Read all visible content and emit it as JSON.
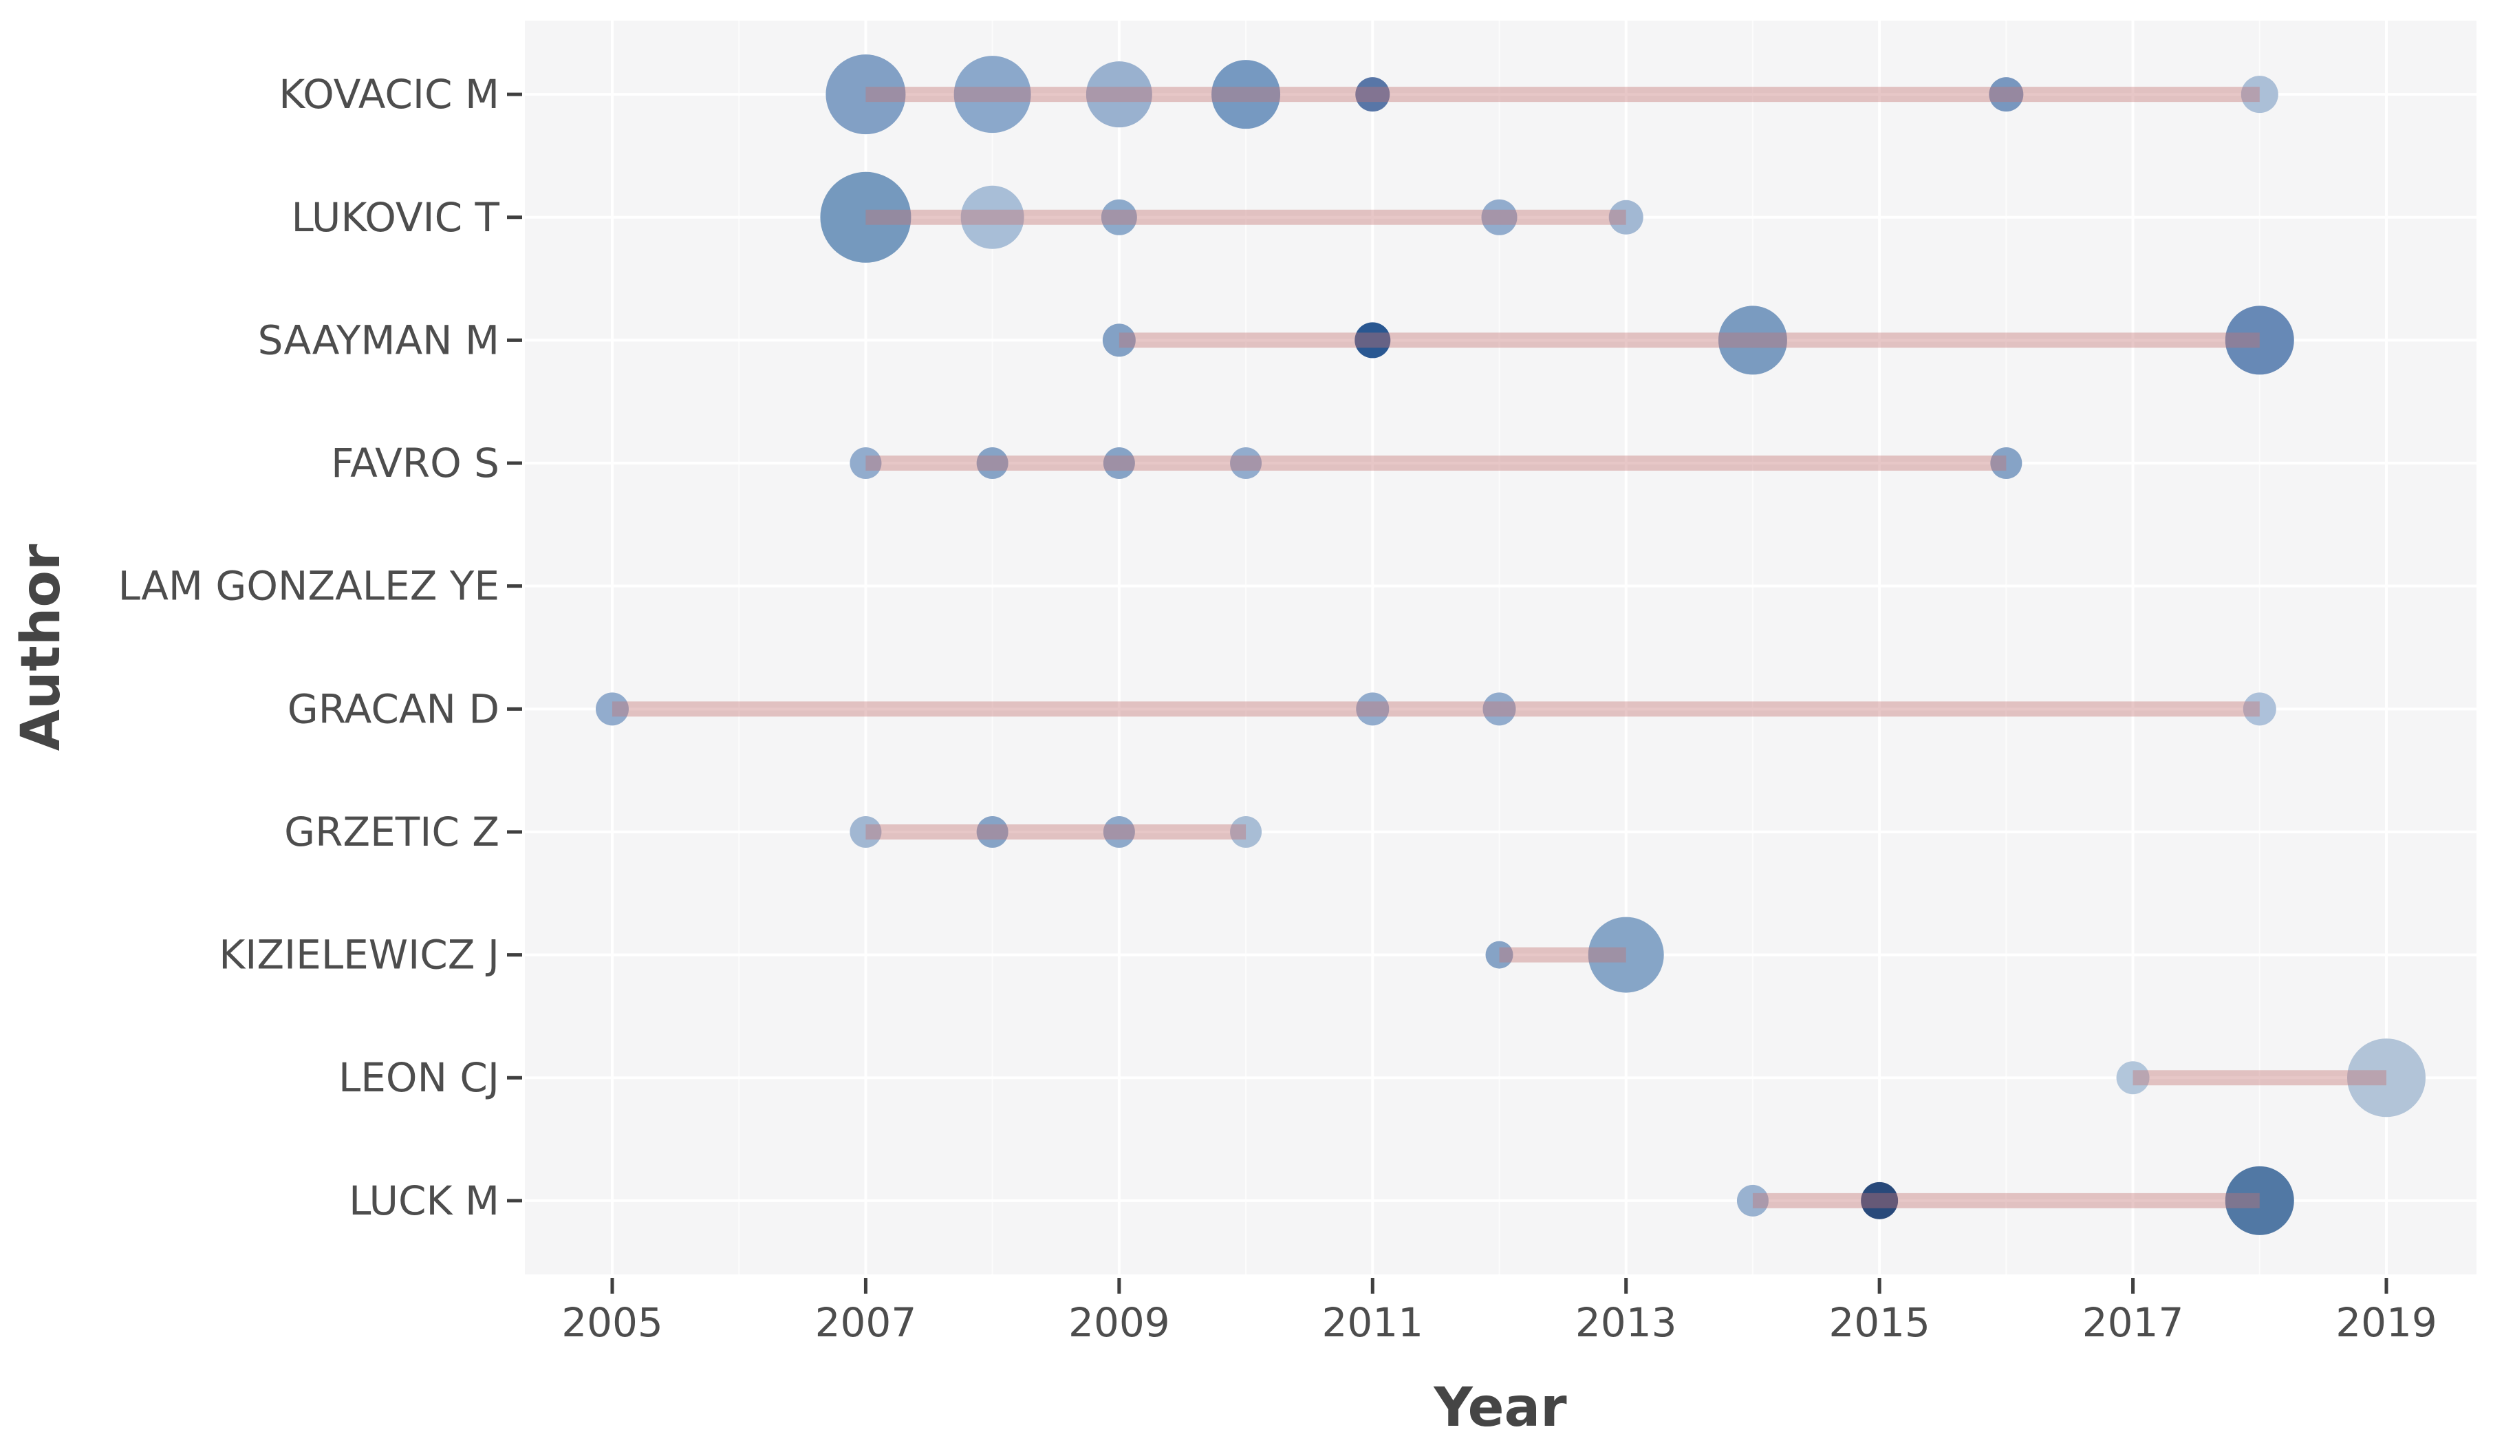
{
  "chart_data": {
    "type": "scatter",
    "subtype": "bubble-timeline",
    "title": "",
    "xlabel": "Year",
    "ylabel": "Author",
    "x_tick_labels": [
      "2005",
      "2007",
      "2009",
      "2011",
      "2013",
      "2015",
      "2017",
      "2019"
    ],
    "x_tick_years": [
      2005,
      2007,
      2009,
      2011,
      2013,
      2015,
      2017,
      2019
    ],
    "x_minor_years": [
      2006,
      2008,
      2010,
      2012,
      2014,
      2016,
      2018
    ],
    "x_range": [
      2004.3,
      2019.7
    ],
    "grid": true,
    "legend": "none",
    "colors": {
      "panel_bg": "#f5f5f6",
      "outer_bg": "#ffffff",
      "gridline": "#ffffff",
      "tick": "#3f3f3f",
      "axis_text": "#4d4d4d",
      "axis_title": "#454545",
      "timeline": "rgba(196,114,114,0.40)"
    },
    "authors": [
      {
        "name": "KOVACIC M",
        "line": {
          "from": 2007,
          "to": 2018
        },
        "points": [
          {
            "year": 2007,
            "r": 58,
            "color": "#7b9bc2"
          },
          {
            "year": 2008,
            "r": 56,
            "color": "#85a3c8"
          },
          {
            "year": 2009,
            "r": 48,
            "color": "#93adcc"
          },
          {
            "year": 2010,
            "r": 50,
            "color": "#6f94be"
          },
          {
            "year": 2011,
            "r": 25,
            "color": "#4f6fa2"
          },
          {
            "year": 2016,
            "r": 25,
            "color": "#7191bc"
          },
          {
            "year": 2018,
            "r": 27,
            "color": "#a7bcd5"
          }
        ]
      },
      {
        "name": "LUKOVIC T",
        "line": {
          "from": 2007,
          "to": 2013
        },
        "points": [
          {
            "year": 2007,
            "r": 66,
            "color": "#6e93bb"
          },
          {
            "year": 2008,
            "r": 46,
            "color": "#a3bbd5"
          },
          {
            "year": 2009,
            "r": 26,
            "color": "#87a5c8"
          },
          {
            "year": 2012,
            "r": 26,
            "color": "#8ca8ca"
          },
          {
            "year": 2013,
            "r": 25,
            "color": "#9db4d1"
          }
        ]
      },
      {
        "name": "SAAYMAN M",
        "line": {
          "from": 2009,
          "to": 2018
        },
        "points": [
          {
            "year": 2009,
            "r": 24,
            "color": "#7c9cc2"
          },
          {
            "year": 2011,
            "r": 26,
            "color": "#1d4e8b"
          },
          {
            "year": 2014,
            "r": 50,
            "color": "#7396bd"
          },
          {
            "year": 2018,
            "r": 50,
            "color": "#5f83b2"
          }
        ]
      },
      {
        "name": "FAVRO S",
        "line": {
          "from": 2007,
          "to": 2016
        },
        "points": [
          {
            "year": 2007,
            "r": 23,
            "color": "#8ca8ca"
          },
          {
            "year": 2008,
            "r": 23,
            "color": "#7f9ec3"
          },
          {
            "year": 2009,
            "r": 23,
            "color": "#7f9ec3"
          },
          {
            "year": 2010,
            "r": 23,
            "color": "#8ca8ca"
          },
          {
            "year": 2016,
            "r": 23,
            "color": "#7f9ec3"
          }
        ]
      },
      {
        "name": "LAM GONZALEZ YE",
        "line": null,
        "points": []
      },
      {
        "name": "GRACAN D",
        "line": {
          "from": 2005,
          "to": 2018
        },
        "points": [
          {
            "year": 2005,
            "r": 24,
            "color": "#8ca8ca"
          },
          {
            "year": 2011,
            "r": 24,
            "color": "#8ca8ca"
          },
          {
            "year": 2012,
            "r": 24,
            "color": "#8ca8ca"
          },
          {
            "year": 2018,
            "r": 24,
            "color": "#a9bed8"
          }
        ]
      },
      {
        "name": "GRZETIC Z",
        "line": {
          "from": 2007,
          "to": 2010
        },
        "points": [
          {
            "year": 2007,
            "r": 23,
            "color": "#9cb3d0"
          },
          {
            "year": 2008,
            "r": 23,
            "color": "#7f9ec3"
          },
          {
            "year": 2009,
            "r": 23,
            "color": "#88a4c7"
          },
          {
            "year": 2010,
            "r": 23,
            "color": "#a3b9d3"
          }
        ]
      },
      {
        "name": "KIZIELEWICZ J",
        "line": {
          "from": 2012,
          "to": 2013
        },
        "points": [
          {
            "year": 2012,
            "r": 20,
            "color": "#7f9ec3"
          },
          {
            "year": 2013,
            "r": 55,
            "color": "#7fa0c4"
          }
        ]
      },
      {
        "name": "LEON CJ",
        "line": {
          "from": 2017,
          "to": 2019
        },
        "points": [
          {
            "year": 2017,
            "r": 24,
            "color": "#aec3d9"
          },
          {
            "year": 2019,
            "r": 57,
            "color": "#aec1d6"
          }
        ]
      },
      {
        "name": "LUCK M",
        "line": {
          "from": 2014,
          "to": 2018
        },
        "points": [
          {
            "year": 2014,
            "r": 23,
            "color": "#94aecd"
          },
          {
            "year": 2015,
            "r": 27,
            "color": "#1c3f73"
          },
          {
            "year": 2018,
            "r": 50,
            "color": "#48719f"
          }
        ]
      }
    ]
  }
}
